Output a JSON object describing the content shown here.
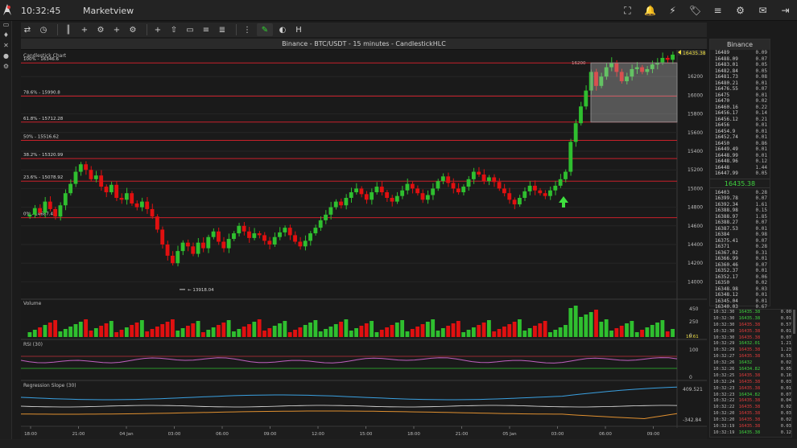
{
  "topbar": {
    "time": "10:32:45",
    "title": "Marketview",
    "icons": [
      "screenshot-icon",
      "bell-icon",
      "satellite-icon",
      "tag-icon",
      "coins-icon",
      "settings-icon",
      "inbox-icon",
      "logout-icon"
    ],
    "icon_glyphs": [
      "⛶",
      "🔔",
      "⚡",
      "🏷",
      "≡",
      "⚙",
      "✉",
      "⇥"
    ]
  },
  "sidebar": {
    "icons": [
      "monitor-icon",
      "bulb-icon",
      "tools-icon",
      "user-icon",
      "gear-icon"
    ],
    "glyphs": [
      "▭",
      "♦",
      "✕",
      "●",
      "⚙"
    ]
  },
  "toolbar": {
    "tools": [
      "swap-icon",
      "clock-icon",
      "candles-icon",
      "add-indicator-icon",
      "indicator-settings-icon",
      "add-study-icon",
      "study-settings-icon",
      "crosshair-icon",
      "arrow-icon",
      "comment-icon",
      "lines-icon",
      "fib-icon",
      "dots-icon",
      "brush-icon",
      "color-icon",
      "heading-icon"
    ],
    "glyphs": [
      "⇄",
      "◷",
      "║",
      "+",
      "⚙",
      "+",
      "⚙",
      "+",
      "⇧",
      "▭",
      "≡",
      "≣",
      "⋮",
      "✎",
      "◐",
      "H"
    ]
  },
  "chart": {
    "header": "Binance - BTC/USDT - 15 minutes - CandlestickHLC",
    "panel_label": "Candlestick Chart",
    "colors": {
      "up": "#2fbf2f",
      "down": "#e01010",
      "fib": "#c8202a",
      "bg": "#1a1a1a"
    },
    "fib_levels": [
      {
        "label": "100% - 16346.6",
        "value": 16346.6
      },
      {
        "label": "78.6% - 15990.8",
        "value": 15990.8
      },
      {
        "label": "61.8% - 15712.28",
        "value": 15712.28
      },
      {
        "label": "50% - 15516.62",
        "value": 15516.62
      },
      {
        "label": "38.2% - 15320.99",
        "value": 15320.99
      },
      {
        "label": "23.6% - 15078.92",
        "value": 15078.92
      },
      {
        "label": "0% - 14687.45",
        "value": 14687.45
      }
    ],
    "price_ticks": [
      "16200",
      "16000",
      "15800",
      "15600",
      "15400",
      "15200",
      "15000",
      "14800",
      "14600",
      "14400",
      "14200",
      "14000"
    ],
    "last_price": "16435.38",
    "low_marker": "13918.04",
    "high_marker": "16200",
    "time_ticks": [
      "18:00",
      "21:00",
      "04 Jan",
      "03:00",
      "06:00",
      "09:00",
      "12:00",
      "15:00",
      "18:00",
      "21:00",
      "05 Jan",
      "03:00",
      "06:00",
      "09:00"
    ],
    "volume": {
      "label": "Volume",
      "ticks": [
        "450",
        "250",
        "0"
      ],
      "last": "10.61"
    },
    "rsi": {
      "label": "RSI (30)",
      "ticks": [
        "100",
        "0"
      ]
    },
    "regression": {
      "label": "Regression Slope (30)",
      "ticks": [
        "409.521",
        "-342.84"
      ]
    }
  },
  "chart_data": {
    "type": "candlestick",
    "title": "Binance - BTC/USDT - 15 minutes - CandlestickHLC",
    "ylim": [
      13918.04,
      16435.38
    ],
    "series": [
      {
        "name": "BTC/USDT",
        "values": [
          14720,
          14790,
          14740,
          14860,
          14780,
          14700,
          14820,
          14950,
          15050,
          15180,
          15260,
          15200,
          15100,
          15140,
          15020,
          14960,
          15040,
          14900,
          14880,
          14950,
          14840,
          14800,
          14860,
          14780,
          14700,
          14560,
          14400,
          14280,
          14200,
          14330,
          14420,
          14380,
          14300,
          14420,
          14360,
          14480,
          14540,
          14430,
          14360,
          14460,
          14520,
          14600,
          14540,
          14470,
          14520,
          14500,
          14440,
          14400,
          14480,
          14530,
          14580,
          14500,
          14430,
          14380,
          14440,
          14520,
          14580,
          14660,
          14720,
          14800,
          14860,
          14820,
          14900,
          14960,
          15000,
          14940,
          14880,
          14960,
          15020,
          14960,
          14900,
          14860,
          14920,
          14980,
          15050,
          15000,
          14950,
          14880,
          14930,
          15000,
          15080,
          15130,
          15060,
          15000,
          14960,
          15020,
          15100,
          15180,
          15150,
          15080,
          15120,
          15070,
          15000,
          14950,
          14880,
          14830,
          14900,
          14970,
          15030,
          14980,
          14950,
          14920,
          14980,
          15030,
          15100,
          15180,
          15500,
          15700,
          15880,
          16050,
          16250,
          16100,
          16200,
          16300,
          16350,
          16250,
          16150,
          16200,
          16280,
          16300,
          16250,
          16280,
          16330,
          16350,
          16400,
          16380,
          16435
        ]
      }
    ]
  },
  "orderbook": {
    "title": "Binance",
    "asks": [
      [
        "16489",
        "0.09"
      ],
      [
        "16488.09",
        "0.07"
      ],
      [
        "16483.01",
        "0.05"
      ],
      [
        "16482.84",
        "0.05"
      ],
      [
        "16481.73",
        "0.08"
      ],
      [
        "16480.21",
        "0.01"
      ],
      [
        "16476.55",
        "0.07"
      ],
      [
        "16475",
        "0.01"
      ],
      [
        "16470",
        "0.02"
      ],
      [
        "16460.16",
        "0.22"
      ],
      [
        "16456.17",
        "0.14"
      ],
      [
        "16456.12",
        "0.21"
      ],
      [
        "16456",
        "0.01"
      ],
      [
        "16454.9",
        "0.01"
      ],
      [
        "16452.74",
        "0.01"
      ],
      [
        "16450",
        "0.86"
      ],
      [
        "16449.49",
        "0.01"
      ],
      [
        "16448.99",
        "0.01"
      ],
      [
        "16448.96",
        "0.12"
      ],
      [
        "16448",
        "1.44"
      ],
      [
        "16447.99",
        "0.05"
      ]
    ],
    "mid": "16435.38",
    "bids": [
      [
        "16403",
        "0.28"
      ],
      [
        "16399.78",
        "0.07"
      ],
      [
        "16392.34",
        "1.61"
      ],
      [
        "16388.98",
        "0.15"
      ],
      [
        "16388.97",
        "1.85"
      ],
      [
        "16388.27",
        "0.07"
      ],
      [
        "16387.53",
        "0.01"
      ],
      [
        "16384",
        "0.98"
      ],
      [
        "16375.41",
        "0.07"
      ],
      [
        "16371",
        "0.28"
      ],
      [
        "16367.02",
        "0.31"
      ],
      [
        "16366.99",
        "0.01"
      ],
      [
        "16360.46",
        "0.07"
      ],
      [
        "16352.37",
        "0.01"
      ],
      [
        "16352.17",
        "0.06"
      ],
      [
        "16350",
        "0.02"
      ],
      [
        "16348.98",
        "0.03"
      ],
      [
        "16348.12",
        "0.01"
      ],
      [
        "16345.04",
        "0.01"
      ],
      [
        "16340.03",
        "0.67"
      ]
    ]
  },
  "trades": [
    [
      "10:32:30",
      "16435.38",
      "0.00",
      "up"
    ],
    [
      "10:32:30",
      "16435.38",
      "0.01",
      "up"
    ],
    [
      "10:32:30",
      "16435.38",
      "0.57",
      "dn"
    ],
    [
      "10:32:30",
      "16435.38",
      "0.01",
      "dn"
    ],
    [
      "10:32:30",
      "16435.38",
      "0.07",
      "dn"
    ],
    [
      "10:32:29",
      "16432.01",
      "1.21",
      "up"
    ],
    [
      "10:32:29",
      "16435.38",
      "1.23",
      "dn"
    ],
    [
      "10:32:27",
      "16435.38",
      "0.55",
      "dn"
    ],
    [
      "10:32:26",
      "16432",
      "0.02",
      "up"
    ],
    [
      "10:32:26",
      "16434.82",
      "0.05",
      "up"
    ],
    [
      "10:32:25",
      "16435.38",
      "0.16",
      "dn"
    ],
    [
      "10:32:24",
      "16435.38",
      "0.03",
      "dn"
    ],
    [
      "10:32:23",
      "16435.38",
      "0.01",
      "dn"
    ],
    [
      "10:32:23",
      "16434.82",
      "0.07",
      "up"
    ],
    [
      "10:32:22",
      "16435.38",
      "0.04",
      "dn"
    ],
    [
      "10:32:22",
      "16435.38",
      "0.02",
      "dn"
    ],
    [
      "10:32:20",
      "16435.38",
      "0.03",
      "dn"
    ],
    [
      "10:32:20",
      "16435.38",
      "0.02",
      "dn"
    ],
    [
      "10:32:19",
      "16435.38",
      "0.03",
      "dn"
    ],
    [
      "10:32:19",
      "16435.38",
      "0.12",
      "up"
    ]
  ]
}
